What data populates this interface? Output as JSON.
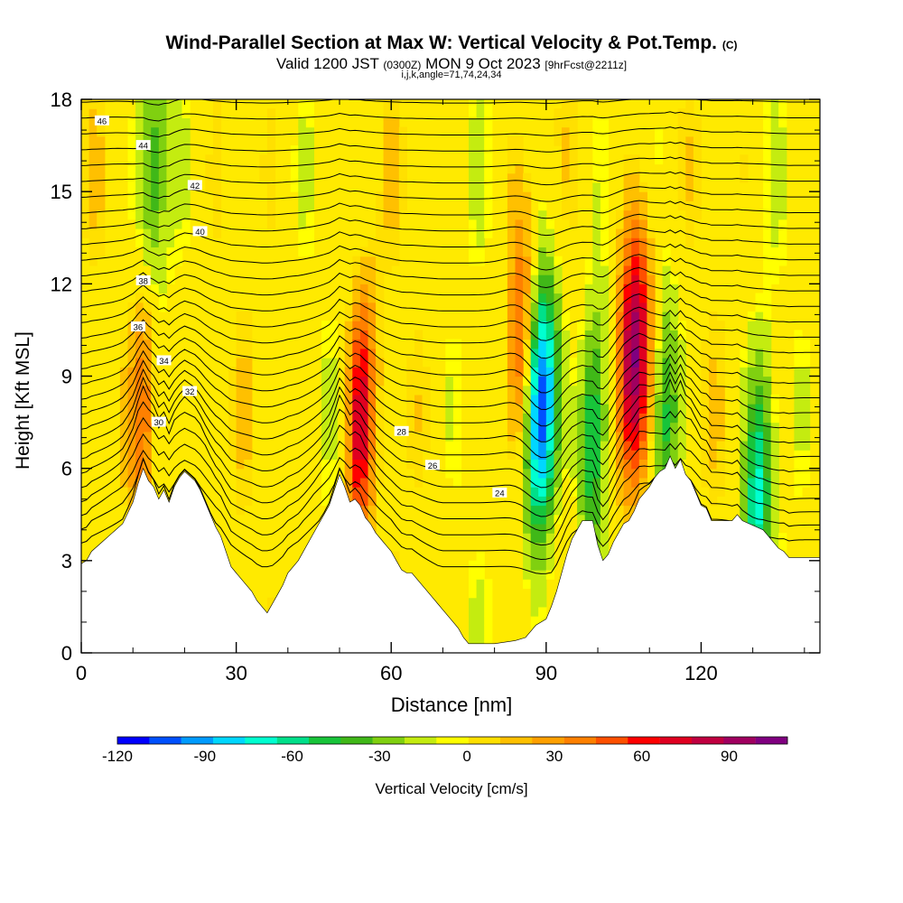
{
  "title": "Wind-Parallel Section at Max W: Vertical Velocity & Pot.Temp.",
  "title_mark": "(C)",
  "subtitle_valid": "Valid 1200 JST",
  "subtitle_utc": "(0300Z)",
  "subtitle_date": "MON 9 Oct 2023",
  "subtitle_fcst": "[9hrFcst@2211z]",
  "subtitle2": "i,j,k,angle=71,74,24,34",
  "chart_data": {
    "type": "heatmap",
    "xlabel": "Distance [nm]",
    "ylabel": "Height [Kft MSL]",
    "xlim": [
      0,
      143
    ],
    "ylim": [
      0,
      18
    ],
    "x_ticks": [
      0,
      30,
      60,
      90,
      120
    ],
    "y_ticks": [
      0,
      3,
      6,
      9,
      12,
      15,
      18
    ],
    "colorbar": {
      "label": "Vertical Velocity [cm/s]",
      "range": [
        -120,
        110
      ],
      "ticks": [
        -120,
        -90,
        -60,
        -30,
        0,
        30,
        60,
        90
      ],
      "colors": [
        "#0000ff",
        "#0050ff",
        "#009bff",
        "#00d7ff",
        "#00ffd0",
        "#00e08a",
        "#18c43a",
        "#40b818",
        "#80d010",
        "#c4ec10",
        "#ffff00",
        "#ffe000",
        "#ffc000",
        "#ffa000",
        "#ff8000",
        "#ff5000",
        "#ff0000",
        "#e00020",
        "#c00040",
        "#a00060",
        "#800080"
      ]
    },
    "terrain_kft": [
      [
        0,
        2.9
      ],
      [
        1,
        3.0
      ],
      [
        2,
        3.3
      ],
      [
        4,
        3.6
      ],
      [
        6,
        3.9
      ],
      [
        8,
        4.2
      ],
      [
        10,
        4.9
      ],
      [
        11,
        5.5
      ],
      [
        12,
        6.0
      ],
      [
        13,
        5.6
      ],
      [
        14,
        5.4
      ],
      [
        15,
        5.0
      ],
      [
        16,
        5.3
      ],
      [
        17,
        4.9
      ],
      [
        18,
        5.4
      ],
      [
        19,
        5.7
      ],
      [
        20,
        5.9
      ],
      [
        22,
        5.6
      ],
      [
        23,
        5.3
      ],
      [
        24,
        4.9
      ],
      [
        25,
        4.5
      ],
      [
        26,
        4.1
      ],
      [
        27,
        3.8
      ],
      [
        28,
        3.3
      ],
      [
        29,
        2.8
      ],
      [
        30,
        2.6
      ],
      [
        31,
        2.4
      ],
      [
        32,
        2.2
      ],
      [
        33,
        2.0
      ],
      [
        34,
        1.7
      ],
      [
        35,
        1.5
      ],
      [
        36,
        1.3
      ],
      [
        37,
        1.6
      ],
      [
        38,
        1.9
      ],
      [
        39,
        2.2
      ],
      [
        40,
        2.6
      ],
      [
        42,
        3.0
      ],
      [
        44,
        3.6
      ],
      [
        46,
        4.2
      ],
      [
        48,
        4.8
      ],
      [
        49,
        5.3
      ],
      [
        50,
        5.8
      ],
      [
        51,
        5.4
      ],
      [
        52,
        4.9
      ],
      [
        53,
        5.0
      ],
      [
        54,
        4.8
      ],
      [
        55,
        4.4
      ],
      [
        56,
        4.2
      ],
      [
        57,
        3.9
      ],
      [
        58,
        3.7
      ],
      [
        59,
        3.5
      ],
      [
        60,
        3.3
      ],
      [
        61,
        3.0
      ],
      [
        62,
        2.7
      ],
      [
        63,
        2.6
      ],
      [
        64,
        2.6
      ],
      [
        65,
        2.4
      ],
      [
        66,
        2.2
      ],
      [
        67,
        2.0
      ],
      [
        68,
        1.8
      ],
      [
        69,
        1.6
      ],
      [
        70,
        1.4
      ],
      [
        71,
        1.2
      ],
      [
        72,
        1.0
      ],
      [
        73,
        0.8
      ],
      [
        74,
        0.5
      ],
      [
        75,
        0.3
      ],
      [
        80,
        0.3
      ],
      [
        84,
        0.4
      ],
      [
        86,
        0.5
      ],
      [
        87,
        0.7
      ],
      [
        88,
        0.9
      ],
      [
        90,
        1.1
      ],
      [
        91,
        1.5
      ],
      [
        92,
        2.0
      ],
      [
        93,
        2.6
      ],
      [
        94,
        3.2
      ],
      [
        95,
        3.7
      ],
      [
        96,
        4.0
      ],
      [
        97,
        4.3
      ],
      [
        99,
        4.3
      ],
      [
        100,
        3.5
      ],
      [
        101,
        3.0
      ],
      [
        102,
        3.2
      ],
      [
        103,
        3.6
      ],
      [
        104,
        3.9
      ],
      [
        105,
        4.2
      ],
      [
        106,
        4.3
      ],
      [
        107,
        4.6
      ],
      [
        108,
        5.0
      ],
      [
        109,
        5.2
      ],
      [
        110,
        5.4
      ],
      [
        111,
        5.7
      ],
      [
        112,
        5.9
      ],
      [
        113,
        6.0
      ],
      [
        114,
        6.4
      ],
      [
        115,
        6.0
      ],
      [
        116,
        6.3
      ],
      [
        117,
        5.8
      ],
      [
        118,
        5.6
      ],
      [
        119,
        5.2
      ],
      [
        120,
        4.8
      ],
      [
        121,
        4.7
      ],
      [
        122,
        4.3
      ],
      [
        126,
        4.3
      ],
      [
        127,
        4.5
      ],
      [
        128,
        4.3
      ],
      [
        132,
        4.0
      ],
      [
        133,
        3.8
      ],
      [
        134,
        3.6
      ],
      [
        135,
        3.4
      ],
      [
        136,
        3.3
      ],
      [
        137,
        3.1
      ],
      [
        143,
        3.1
      ]
    ],
    "updrafts": [
      {
        "x": 107,
        "z": 9.5,
        "peak": 110
      },
      {
        "x": 54,
        "z": 7.5,
        "peak": 70
      },
      {
        "x": 85,
        "z": 10.0,
        "peak": 55
      },
      {
        "x": 12,
        "z": 8.0,
        "peak": 50
      }
    ],
    "downdrafts": [
      {
        "x": 89,
        "z": 8.0,
        "peak": -120
      },
      {
        "x": 113,
        "z": 7.5,
        "peak": -50
      },
      {
        "x": 131,
        "z": 5.0,
        "peak": -65
      },
      {
        "x": 99,
        "z": 7.0,
        "peak": -60
      },
      {
        "x": 14,
        "z": 15.5,
        "peak": -40
      }
    ],
    "theta_contours": [
      {
        "value": 24,
        "label_x": 81,
        "label_z": 5.2
      },
      {
        "value": 26,
        "label_x": 68,
        "label_z": 6.1
      },
      {
        "value": 28,
        "label_x": 62,
        "label_z": 7.2
      },
      {
        "value": 30,
        "label_x": 15,
        "label_z": 7.5
      },
      {
        "value": 32,
        "label_x": 21,
        "label_z": 8.5
      },
      {
        "value": 34,
        "label_x": 16,
        "label_z": 9.5
      },
      {
        "value": 36,
        "label_x": 11,
        "label_z": 10.6
      },
      {
        "value": 38,
        "label_x": 12,
        "label_z": 12.1
      },
      {
        "value": 40,
        "label_x": 23,
        "label_z": 13.7
      },
      {
        "value": 42,
        "label_x": 22,
        "label_z": 15.2
      },
      {
        "value": 44,
        "label_x": 12,
        "label_z": 16.5
      },
      {
        "value": 46,
        "label_x": 4,
        "label_z": 17.3
      }
    ]
  }
}
